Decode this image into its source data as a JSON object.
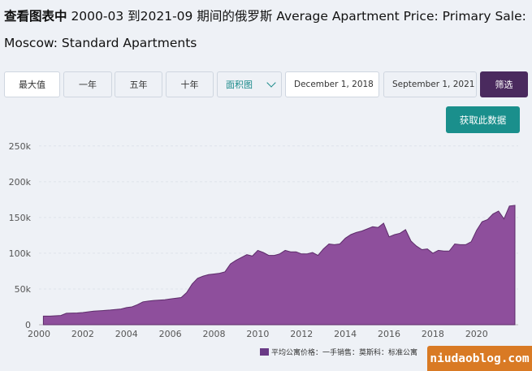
{
  "title": {
    "bold_prefix": "查看图表中",
    "text": " 2000-03 到2021-09 期间的俄罗斯 Average Apartment Price: Primary Sale: Moscow: Standard Apartments"
  },
  "toolbar": {
    "max_label": "最大值",
    "one_year_label": "一年",
    "five_year_label": "五年",
    "ten_year_label": "十年",
    "chart_type_value": "面积图",
    "start_date": "December 1, 2018",
    "end_date": "September 1, 2021",
    "filter_label": "筛选",
    "get_data_label": "获取此数据"
  },
  "watermark": "niudaoblog.com",
  "colors": {
    "area_fill": "#8e4f9c",
    "area_stroke": "#5d2c6a",
    "filter_btn": "#4a2a5e",
    "get_data_btn": "#1a8f8c"
  },
  "chart_data": {
    "type": "area",
    "title": "",
    "xlabel": "",
    "ylabel": "",
    "ylim": [
      0,
      260000
    ],
    "xlim": [
      2000,
      2021.9
    ],
    "y_ticks": [
      0,
      50000,
      100000,
      150000,
      200000,
      250000
    ],
    "y_tick_labels": [
      "0",
      "50k",
      "100k",
      "150k",
      "200k",
      "250k"
    ],
    "x_ticks": [
      2000,
      2002,
      2004,
      2006,
      2008,
      2010,
      2012,
      2014,
      2016,
      2018,
      2020
    ],
    "x_tick_labels": [
      "2000",
      "2002",
      "2004",
      "2006",
      "2008",
      "2010",
      "2012",
      "2014",
      "2016",
      "2018",
      "2020"
    ],
    "grid": "horizontal",
    "legend_position": "bottom-right",
    "series": [
      {
        "name": "平均公寓价格：一手销售：莫斯科：标准公寓",
        "x": [
          2000.2,
          2000.5,
          2001.0,
          2001.25,
          2001.75,
          2002.0,
          2002.5,
          2003.0,
          2003.25,
          2003.75,
          2004.0,
          2004.25,
          2004.5,
          2004.75,
          2005.0,
          2005.25,
          2005.75,
          2006.0,
          2006.25,
          2006.5,
          2006.75,
          2007.0,
          2007.25,
          2007.5,
          2007.75,
          2008.0,
          2008.25,
          2008.5,
          2008.75,
          2009.0,
          2009.5,
          2009.75,
          2010.0,
          2010.25,
          2010.5,
          2010.75,
          2011.0,
          2011.25,
          2011.5,
          2011.75,
          2012.0,
          2012.25,
          2012.5,
          2012.75,
          2013.0,
          2013.25,
          2013.5,
          2013.75,
          2014.0,
          2014.25,
          2014.5,
          2014.75,
          2015.0,
          2015.25,
          2015.5,
          2015.75,
          2016.0,
          2016.25,
          2016.5,
          2016.75,
          2017.0,
          2017.25,
          2017.5,
          2017.75,
          2018.0,
          2018.25,
          2018.5,
          2018.75,
          2019.0,
          2019.25,
          2019.5,
          2019.75,
          2020.0,
          2020.25,
          2020.5,
          2020.75,
          2021.0,
          2021.25,
          2021.5,
          2021.75
        ],
        "values": [
          12000,
          12000,
          13000,
          16000,
          16500,
          17000,
          19000,
          20000,
          20500,
          22000,
          24000,
          25000,
          28000,
          32000,
          33000,
          34000,
          35000,
          36000,
          37000,
          38000,
          45000,
          57000,
          65000,
          68000,
          70000,
          71000,
          72000,
          74000,
          85000,
          90000,
          98000,
          96000,
          104000,
          101000,
          97000,
          97000,
          99000,
          104000,
          102000,
          102000,
          99000,
          99000,
          101000,
          97000,
          106000,
          113000,
          112000,
          113000,
          121000,
          126000,
          129000,
          131000,
          134000,
          137000,
          136000,
          142000,
          123000,
          126000,
          128000,
          133000,
          117000,
          110000,
          105000,
          106000,
          100000,
          104000,
          103000,
          103000,
          113000,
          112000,
          112000,
          116000,
          132000,
          144000,
          147000,
          155000,
          159000,
          148000,
          166000,
          167000
        ]
      }
    ]
  }
}
